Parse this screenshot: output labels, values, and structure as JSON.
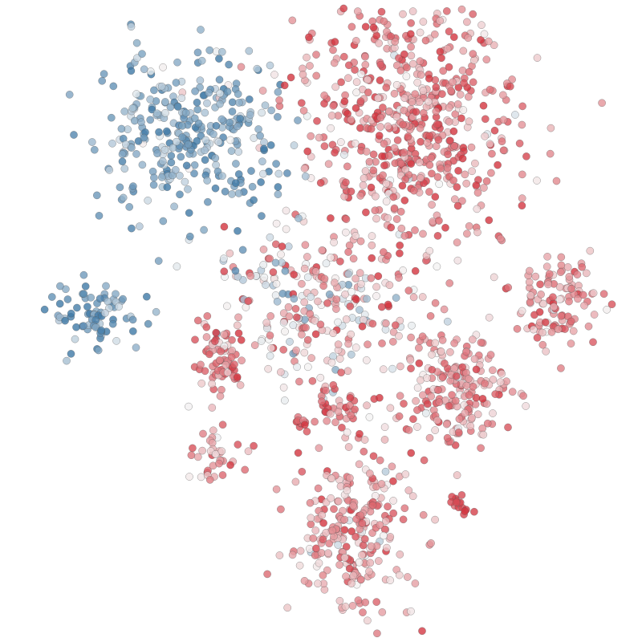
{
  "chart_data": {
    "type": "scatter",
    "title": "",
    "xlabel": "",
    "ylabel": "",
    "axes_visible": false,
    "grid": false,
    "legend": "none",
    "xlim": [
      -50,
      50
    ],
    "ylim": [
      -50,
      50
    ],
    "colormap": {
      "type": "diverging",
      "low": "#3f79a6",
      "mid": "#f4f4f4",
      "high": "#d3343f",
      "range": [
        -1,
        1
      ]
    },
    "point_opacity": 0.8,
    "point_edge": "#555555",
    "clusters": [
      {
        "center": [
          -22,
          31
        ],
        "spread": [
          7.5,
          6.5
        ],
        "count": 330,
        "score_mean": -0.65,
        "score_sd": 0.3
      },
      {
        "center": [
          -37,
          1
        ],
        "spread": [
          4,
          2.5
        ],
        "count": 80,
        "score_mean": -0.75,
        "score_sd": 0.25
      },
      {
        "center": [
          14,
          32
        ],
        "spread": [
          9,
          11
        ],
        "count": 620,
        "score_mean": 0.6,
        "score_sd": 0.3
      },
      {
        "center": [
          39,
          3
        ],
        "spread": [
          3.5,
          3.5
        ],
        "count": 110,
        "score_mean": 0.55,
        "score_sd": 0.25
      },
      {
        "center": [
          22,
          -11
        ],
        "spread": [
          4.5,
          5
        ],
        "count": 200,
        "score_mean": 0.5,
        "score_sd": 0.25
      },
      {
        "center": [
          -17,
          -6
        ],
        "spread": [
          2.5,
          3
        ],
        "count": 70,
        "score_mean": 0.6,
        "score_sd": 0.25
      },
      {
        "center": [
          -17,
          -22
        ],
        "spread": [
          2,
          2.5
        ],
        "count": 40,
        "score_mean": 0.45,
        "score_sd": 0.25
      },
      {
        "center": [
          5,
          -35
        ],
        "spread": [
          5,
          7
        ],
        "count": 260,
        "score_mean": 0.5,
        "score_sd": 0.3
      },
      {
        "center": [
          1,
          0
        ],
        "spread": [
          8,
          6
        ],
        "count": 200,
        "score_mean": 0.35,
        "score_sd": 0.4
      },
      {
        "center": [
          2,
          -14
        ],
        "spread": [
          2,
          1.5
        ],
        "count": 30,
        "score_mean": 0.7,
        "score_sd": 0.2
      },
      {
        "center": [
          -3,
          -17
        ],
        "spread": [
          1,
          1
        ],
        "count": 10,
        "score_mean": 0.85,
        "score_sd": 0.1
      },
      {
        "center": [
          23,
          -30
        ],
        "spread": [
          1,
          0.8
        ],
        "count": 15,
        "score_mean": 0.9,
        "score_sd": 0.1
      },
      {
        "center": [
          -6,
          8
        ],
        "spread": [
          6,
          5
        ],
        "count": 60,
        "score_mean": -0.1,
        "score_sd": 0.5
      }
    ]
  }
}
